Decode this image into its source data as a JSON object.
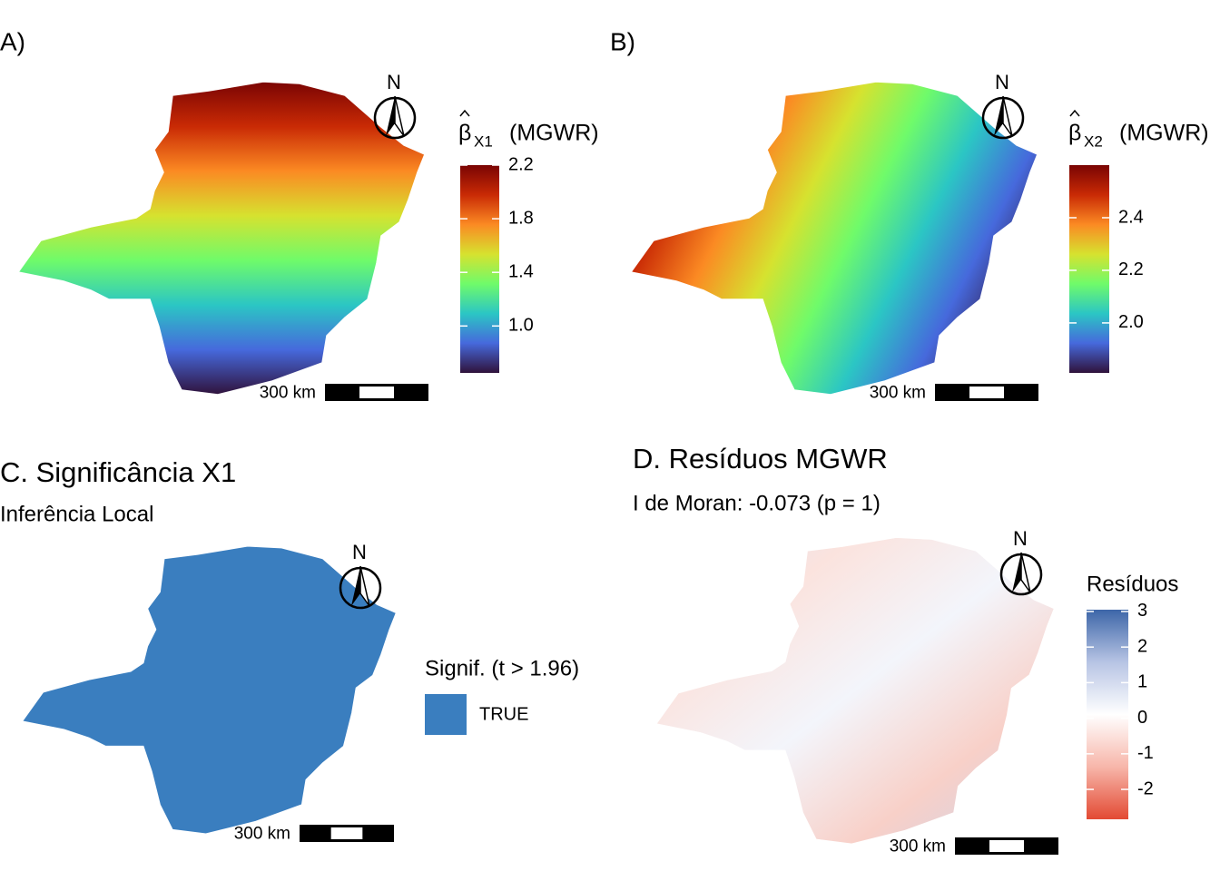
{
  "panels": [
    {
      "label": "A)",
      "north": "N",
      "scale_bar": "300 km",
      "legend": {
        "symbol": "β",
        "subscript": "X1",
        "text": "(MGWR)",
        "lim": [
          0.65,
          2.2
        ],
        "ticks": [
          2.2,
          1.8,
          1.4,
          {
            "value": 1,
            "label": "1.0"
          }
        ],
        "colors": [
          "#30123b",
          "#4669dc",
          "#2bc6c4",
          "#6ffb6a",
          "#d6e22f",
          "#fb8a23",
          "#c92a05",
          "#7a0403"
        ]
      }
    },
    {
      "label": "B)",
      "north": "N",
      "scale_bar": "300 km",
      "legend": {
        "symbol": "β",
        "subscript": "X2",
        "text": "(MGWR)",
        "lim": [
          1.81,
          2.6
        ],
        "ticks": [
          2.4,
          2.2,
          {
            "value": 2,
            "label": "2.0"
          }
        ],
        "colors": [
          "#30123b",
          "#4669dc",
          "#2bc6c4",
          "#6ffb6a",
          "#d6e22f",
          "#fb8a23",
          "#c92a05",
          "#7a0403"
        ]
      }
    },
    {
      "title": "C. Significância X1",
      "subtitle": "Inferência Local",
      "north": "N",
      "scale_bar": "300 km",
      "legend": {
        "title": "Signif. (t > 1.96)",
        "entries": [
          {
            "label": "TRUE",
            "color": "#3a7ebf"
          }
        ]
      }
    },
    {
      "title": "D. Resíduos MGWR",
      "subtitle": "I de Moran: -0.073 (p = 1)",
      "north": "N",
      "scale_bar": "300 km",
      "legend": {
        "title": "Resíduos",
        "lim": [
          -2.84,
          3.05
        ],
        "ticks": [
          3,
          2,
          1,
          0,
          -1,
          -2
        ],
        "colors": [
          "#e34a33",
          "#f7b6aa",
          "#ffffff",
          "#b7c4e4",
          "#3d66a8"
        ]
      }
    }
  ]
}
